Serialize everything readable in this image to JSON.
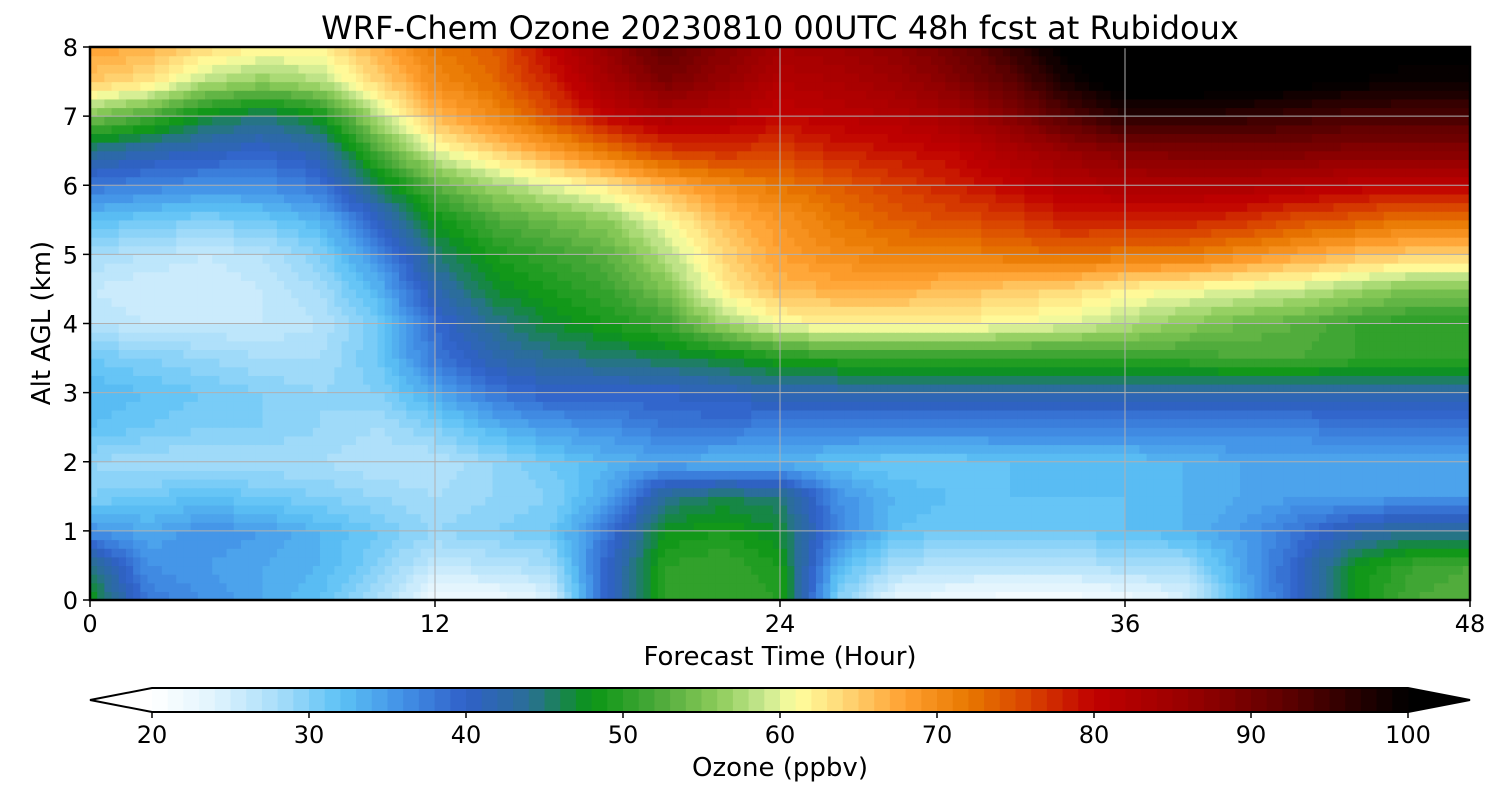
{
  "chart_data": {
    "type": "heatmap",
    "title": "WRF-Chem Ozone  20230810 00UTC 48h fcst at Rubidoux",
    "xlabel": "Forecast Time (Hour)",
    "ylabel": "Alt AGL (km)",
    "xlim": [
      0,
      48
    ],
    "ylim": [
      0,
      8
    ],
    "xticks": [
      "0",
      "12",
      "24",
      "36",
      "48"
    ],
    "yticks": [
      "0",
      "1",
      "2",
      "3",
      "4",
      "5",
      "6",
      "7",
      "8"
    ],
    "grid": true,
    "x": [
      0,
      2,
      4,
      6,
      8,
      10,
      12,
      14,
      16,
      18,
      20,
      22,
      24,
      26,
      28,
      30,
      32,
      34,
      36,
      38,
      40,
      42,
      44,
      46,
      48
    ],
    "y": [
      0,
      0.5,
      1,
      1.5,
      2,
      2.5,
      3,
      3.5,
      4,
      4.5,
      5,
      5.5,
      6,
      6.5,
      7,
      7.5,
      8
    ],
    "z": [
      [
        48,
        38,
        36,
        34,
        32,
        28,
        22,
        22,
        24,
        40,
        50,
        51,
        50,
        30,
        23,
        22,
        21,
        21,
        22,
        24,
        33,
        40,
        48,
        52,
        53
      ],
      [
        45,
        36,
        35,
        34,
        33,
        30,
        26,
        27,
        28,
        40,
        50,
        51,
        49,
        33,
        28,
        27,
        27,
        27,
        28,
        28,
        34,
        40,
        48,
        51,
        52
      ],
      [
        36,
        34,
        36,
        35,
        33,
        31,
        29,
        30,
        31,
        38,
        48,
        49,
        47,
        37,
        32,
        31,
        31,
        31,
        32,
        33,
        35,
        38,
        42,
        44,
        44
      ],
      [
        30,
        31,
        32,
        31,
        30,
        29,
        28,
        29,
        30,
        34,
        44,
        46,
        45,
        36,
        33,
        32,
        32,
        32,
        32,
        33,
        34,
        35,
        35,
        35,
        35
      ],
      [
        29,
        28,
        28,
        28,
        28,
        27,
        27,
        29,
        31,
        33,
        34,
        33,
        33,
        32,
        31,
        31,
        32,
        32,
        32,
        33,
        34,
        34,
        34,
        34,
        34
      ],
      [
        32,
        31,
        30,
        30,
        29,
        28,
        30,
        33,
        35,
        36,
        38,
        38,
        37,
        37,
        37,
        37,
        37,
        37,
        37,
        37,
        37,
        37,
        38,
        38,
        38
      ],
      [
        33,
        32,
        31,
        30,
        29,
        30,
        34,
        38,
        40,
        40,
        40,
        41,
        42,
        42,
        42,
        42,
        42,
        42,
        42,
        42,
        42,
        42,
        42,
        42,
        42
      ],
      [
        31,
        30,
        29,
        28,
        28,
        31,
        38,
        42,
        44,
        45,
        46,
        47,
        49,
        50,
        50,
        50,
        50,
        50,
        51,
        51,
        52,
        52,
        51,
        50,
        50
      ],
      [
        27,
        26,
        26,
        26,
        27,
        31,
        39,
        44,
        47,
        49,
        51,
        57,
        61,
        62,
        62,
        62,
        61,
        60,
        58,
        56,
        54,
        53,
        51,
        50,
        50
      ],
      [
        26,
        25,
        25,
        26,
        28,
        33,
        42,
        47,
        49,
        51,
        55,
        62,
        66,
        67,
        67,
        66,
        65,
        64,
        62,
        61,
        60,
        59,
        57,
        55,
        55
      ],
      [
        28,
        27,
        26,
        27,
        30,
        36,
        45,
        49,
        51,
        53,
        58,
        64,
        68,
        70,
        71,
        71,
        72,
        73,
        72,
        72,
        70,
        68,
        66,
        65,
        65
      ],
      [
        32,
        31,
        30,
        31,
        33,
        40,
        48,
        52,
        54,
        56,
        61,
        66,
        69,
        72,
        74,
        75,
        76,
        78,
        78,
        78,
        77,
        75,
        74,
        72,
        72
      ],
      [
        38,
        37,
        36,
        36,
        38,
        46,
        53,
        57,
        60,
        63,
        67,
        70,
        72,
        74,
        76,
        78,
        80,
        82,
        83,
        83,
        83,
        82,
        81,
        80,
        80
      ],
      [
        44,
        42,
        41,
        40,
        42,
        52,
        60,
        64,
        68,
        72,
        76,
        77,
        76,
        78,
        79,
        80,
        83,
        86,
        88,
        89,
        89,
        89,
        88,
        88,
        88
      ],
      [
        55,
        52,
        47,
        45,
        48,
        58,
        66,
        70,
        75,
        80,
        83,
        82,
        80,
        81,
        82,
        84,
        88,
        93,
        97,
        97,
        96,
        95,
        94,
        94,
        94
      ],
      [
        65,
        63,
        58,
        56,
        58,
        64,
        70,
        73,
        78,
        84,
        89,
        86,
        82,
        83,
        85,
        88,
        92,
        98,
        102,
        102,
        102,
        101,
        100,
        99,
        99
      ],
      [
        68,
        67,
        64,
        62,
        62,
        67,
        72,
        74,
        80,
        86,
        92,
        88,
        84,
        85,
        87,
        90,
        95,
        101,
        103,
        104,
        104,
        103,
        102,
        101,
        101
      ]
    ],
    "colorbar": {
      "label": "Ozone  (ppbv)",
      "min": 20,
      "max": 100,
      "step": 1,
      "ticks": [
        "20",
        "30",
        "40",
        "50",
        "60",
        "70",
        "80",
        "90",
        "100"
      ],
      "extend": "both",
      "stops": [
        [
          20,
          "#ffffff"
        ],
        [
          24,
          "#e0f4fd"
        ],
        [
          28,
          "#a8ddfa"
        ],
        [
          32,
          "#5cc2f5"
        ],
        [
          36,
          "#4290e6"
        ],
        [
          40,
          "#3060c8"
        ],
        [
          44,
          "#2a6f96"
        ],
        [
          48,
          "#0a9614"
        ],
        [
          52,
          "#48a838"
        ],
        [
          56,
          "#8ccb5a"
        ],
        [
          59,
          "#c8e890"
        ],
        [
          61,
          "#ffff9e"
        ],
        [
          64,
          "#ffd878"
        ],
        [
          68,
          "#ffa030"
        ],
        [
          72,
          "#e87800"
        ],
        [
          76,
          "#d84000"
        ],
        [
          80,
          "#c00000"
        ],
        [
          86,
          "#980000"
        ],
        [
          92,
          "#600000"
        ],
        [
          96,
          "#300000"
        ],
        [
          100,
          "#000000"
        ]
      ]
    }
  }
}
